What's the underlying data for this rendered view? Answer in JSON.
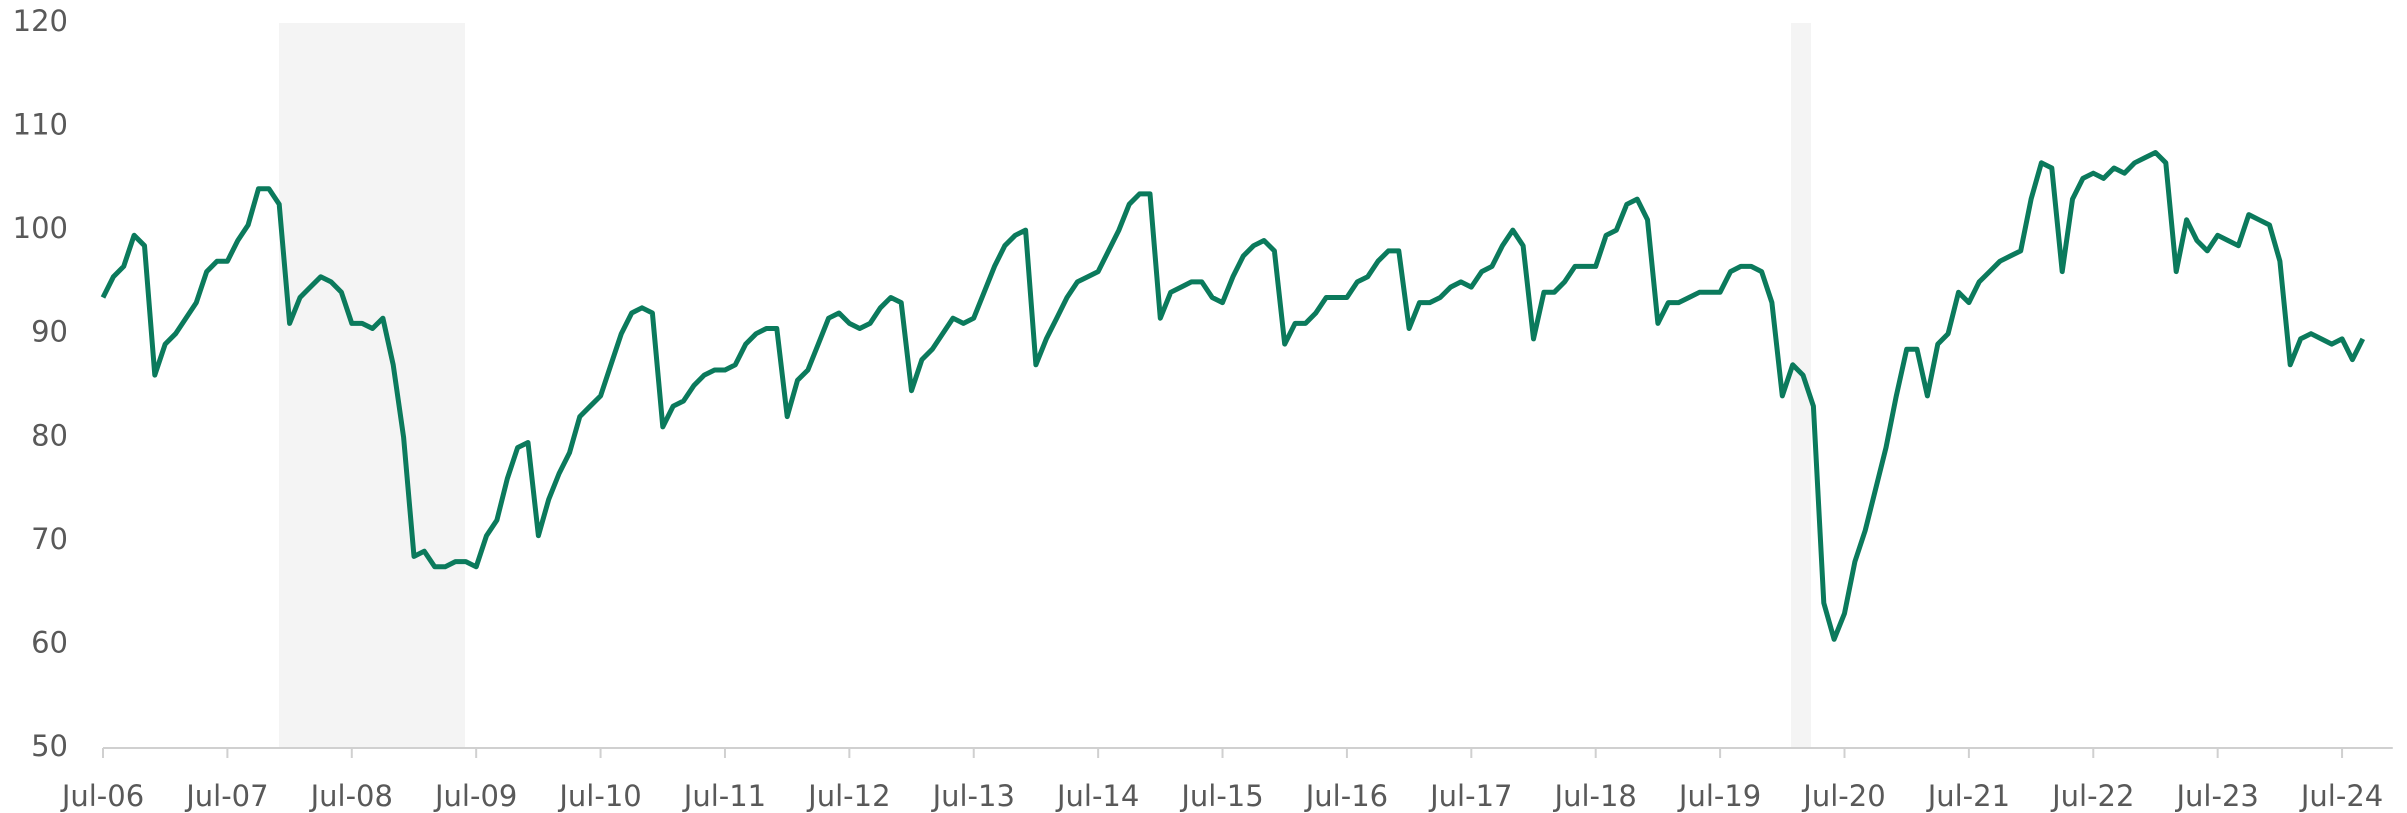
{
  "chart_data": {
    "type": "line",
    "categories": [
      "Jul-06",
      null,
      null,
      null,
      null,
      null,
      null,
      null,
      null,
      null,
      null,
      null,
      "Jul-07",
      null,
      null,
      null,
      null,
      null,
      null,
      null,
      null,
      null,
      null,
      null,
      "Jul-08",
      null,
      null,
      null,
      null,
      null,
      null,
      null,
      null,
      null,
      null,
      null,
      "Jul-09",
      null,
      null,
      null,
      null,
      null,
      null,
      null,
      null,
      null,
      null,
      null,
      "Jul-10",
      null,
      null,
      null,
      null,
      null,
      null,
      null,
      null,
      null,
      null,
      null,
      "Jul-11",
      null,
      null,
      null,
      null,
      null,
      null,
      null,
      null,
      null,
      null,
      null,
      "Jul-12",
      null,
      null,
      null,
      null,
      null,
      null,
      null,
      null,
      null,
      null,
      null,
      "Jul-13",
      null,
      null,
      null,
      null,
      null,
      null,
      null,
      null,
      null,
      null,
      null,
      "Jul-14",
      null,
      null,
      null,
      null,
      null,
      null,
      null,
      null,
      null,
      null,
      null,
      "Jul-15",
      null,
      null,
      null,
      null,
      null,
      null,
      null,
      null,
      null,
      null,
      null,
      "Jul-16",
      null,
      null,
      null,
      null,
      null,
      null,
      null,
      null,
      null,
      null,
      null,
      "Jul-17",
      null,
      null,
      null,
      null,
      null,
      null,
      null,
      null,
      null,
      null,
      null,
      "Jul-18",
      null,
      null,
      null,
      null,
      null,
      null,
      null,
      null,
      null,
      null,
      null,
      "Jul-19",
      null,
      null,
      null,
      null,
      null,
      null,
      null,
      null,
      null,
      null,
      null,
      "Jul-20",
      null,
      null,
      null,
      null,
      null,
      null,
      null,
      null,
      null,
      null,
      null,
      "Jul-21",
      null,
      null,
      null,
      null,
      null,
      null,
      null,
      null,
      null,
      null,
      null,
      "Jul-22",
      null,
      null,
      null,
      null,
      null,
      null,
      null,
      null,
      null,
      null,
      null,
      "Jul-23",
      null,
      null,
      null,
      null,
      null,
      null,
      null,
      null,
      null,
      null,
      null,
      "Jul-24",
      null,
      null
    ],
    "series": [
      {
        "color": "#0b7a5c",
        "values": [
          93.5,
          95.5,
          96.5,
          99.5,
          98.5,
          86,
          89,
          90,
          91.5,
          93,
          96,
          97,
          97,
          99,
          100.5,
          104,
          104,
          102.5,
          91,
          93.5,
          94.5,
          95.5,
          95,
          94,
          91,
          91,
          90.5,
          91.5,
          87,
          80,
          68.5,
          69,
          67.5,
          67.5,
          68,
          68,
          67.5,
          70.5,
          72,
          76,
          79,
          79.5,
          70.5,
          74,
          76.5,
          78.5,
          82,
          83,
          84,
          87,
          90,
          92,
          92.5,
          92,
          81,
          83,
          83.5,
          85,
          86,
          86.5,
          86.5,
          87,
          89,
          90,
          90.5,
          90.5,
          82,
          85.5,
          86.5,
          89,
          91.5,
          92,
          91,
          90.5,
          91,
          92.5,
          93.5,
          93,
          84.5,
          87.5,
          88.5,
          90,
          91.5,
          91,
          91.5,
          94,
          96.5,
          98.5,
          99.5,
          100,
          87,
          89.5,
          91.5,
          93.5,
          95,
          95.5,
          96,
          98,
          100,
          102.5,
          103.5,
          103.5,
          91.5,
          94,
          94.5,
          95,
          95,
          93.5,
          93,
          95.5,
          97.5,
          98.5,
          99,
          98,
          89,
          91,
          91,
          92,
          93.5,
          93.5,
          93.5,
          95,
          95.5,
          97,
          98,
          98,
          90.5,
          93,
          93,
          93.5,
          94.5,
          95,
          94.5,
          96,
          96.5,
          98.5,
          100,
          98.5,
          89.5,
          94,
          94,
          95,
          96.5,
          96.5,
          96.5,
          99.5,
          100,
          102.5,
          103,
          101,
          91,
          93,
          93,
          93.5,
          94,
          94,
          94,
          96,
          96.5,
          96.5,
          96,
          93,
          84,
          87,
          86,
          83,
          64,
          60.5,
          63,
          68,
          71,
          75,
          79,
          84,
          88.5,
          88.5,
          84,
          89,
          90,
          94,
          93,
          95,
          96,
          97,
          97.5,
          98,
          103,
          106.5,
          106,
          96,
          103,
          105,
          105.5,
          105,
          106,
          105.5,
          106.5,
          107,
          107.5,
          106.5,
          96,
          101,
          99,
          98,
          99.5,
          99,
          98.5,
          101.5,
          101,
          100.5,
          97,
          87,
          89.5,
          90,
          89.5,
          89,
          89.5,
          87.5,
          89.5
        ]
      }
    ],
    "ylim": [
      50,
      120
    ],
    "yticks": [
      50,
      60,
      70,
      80,
      90,
      100,
      110,
      120
    ],
    "grid": false
  }
}
